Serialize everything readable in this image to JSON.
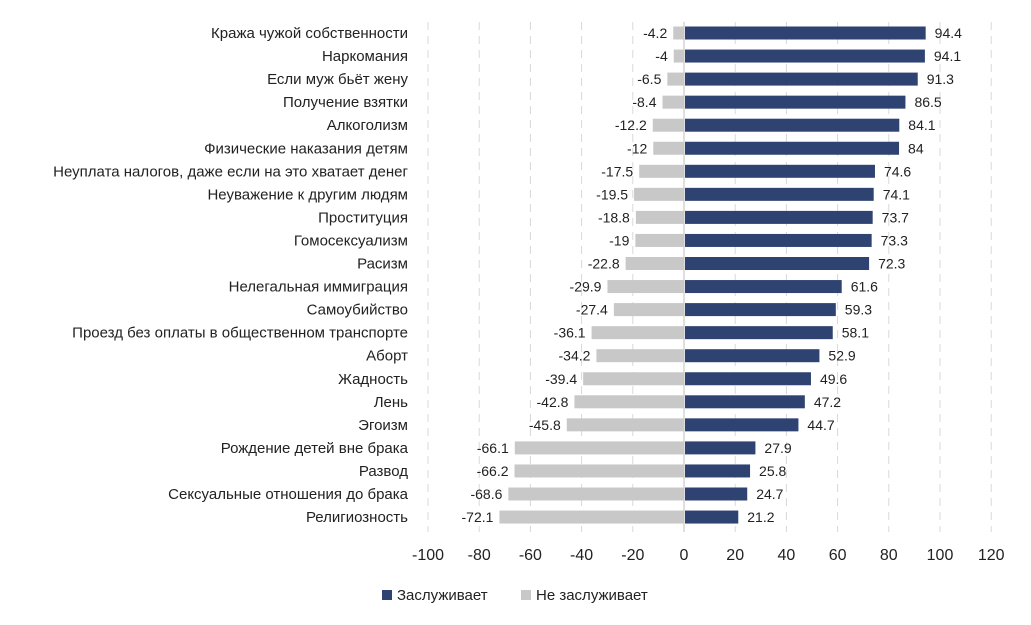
{
  "chart_data": {
    "type": "bar",
    "orientation": "horizontal",
    "stacked": "diverging",
    "categories": [
      "Кража чужой собственности",
      "Наркомания",
      "Если муж бьёт жену",
      "Получение взятки",
      "Алкоголизм",
      "Физические наказания детям",
      "Неуплата налогов, даже если на это хватает денег",
      "Неуважение к другим людям",
      "Проституция",
      "Гомосексуализм",
      "Расизм",
      "Нелегальная иммиграция",
      "Самоубийство",
      "Проезд без оплаты в общественном транспорте",
      "Аборт",
      "Жадность",
      "Лень",
      "Эгоизм",
      "Рождение детей вне брака",
      "Развод",
      "Сексуальные отношения до брака",
      "Религиозность"
    ],
    "series": [
      {
        "name": "Заслуживает",
        "color": "#2e4372",
        "values": [
          94.4,
          94.1,
          91.3,
          86.5,
          84.1,
          84,
          74.6,
          74.1,
          73.7,
          73.3,
          72.3,
          61.6,
          59.3,
          58.1,
          52.9,
          49.6,
          47.2,
          44.7,
          27.9,
          25.8,
          24.7,
          21.2
        ]
      },
      {
        "name": "Не заслуживает",
        "color": "#c8c8c8",
        "values": [
          -4.2,
          -4,
          -6.5,
          -8.4,
          -12.2,
          -12,
          -17.5,
          -19.5,
          -18.8,
          -19,
          -22.8,
          -29.9,
          -27.4,
          -36.1,
          -34.2,
          -39.4,
          -42.8,
          -45.8,
          -66.1,
          -66.2,
          -68.6,
          -72.1
        ]
      }
    ],
    "xlim": [
      -100,
      120
    ],
    "xticks": [
      -100,
      -80,
      -60,
      -40,
      -20,
      0,
      20,
      40,
      60,
      80,
      100,
      120
    ],
    "grid": "vertical dashed",
    "legend": "bottom",
    "title": "",
    "xlabel": "",
    "ylabel": ""
  }
}
